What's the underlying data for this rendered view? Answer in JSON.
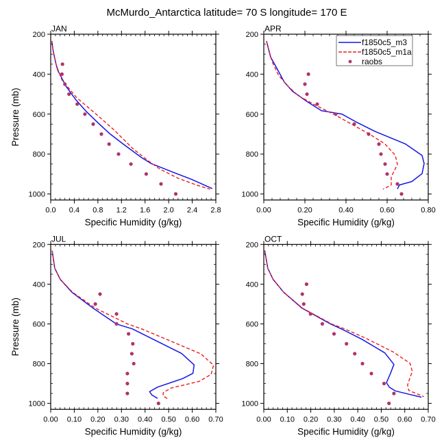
{
  "chart_data": {
    "title": "McMurdo_Antarctica  latitude= 70 S longitude= 170 E",
    "type": "line",
    "legend": {
      "placement": "top-right of APR panel",
      "entries": [
        {
          "name": "f1850c5_m3",
          "style": "solid-line",
          "color": "#1414e6"
        },
        {
          "name": "f1850c5_m1a",
          "style": "dashed-line",
          "color": "#ee1c1c"
        },
        {
          "name": "raobs",
          "style": "dot",
          "color": "#b03468"
        }
      ]
    },
    "panels": [
      {
        "label": "JAN",
        "xlabel": "Specific Humidity (g/kg)",
        "ylabel": "Pressure (mb)",
        "xlim": [
          0,
          2.8
        ],
        "ylim": [
          200,
          1030
        ],
        "y_reversed": true,
        "xticks": [
          0.0,
          0.4,
          0.8,
          1.2,
          1.6,
          2.0,
          2.4,
          2.8
        ],
        "xtick_labels": [
          "0.0",
          "0.4",
          "0.8",
          "1.2",
          "1.6",
          "2.0",
          "2.4",
          "2.8"
        ],
        "x_minor_step": 0.08,
        "yticks": [
          200,
          400,
          600,
          800,
          1000
        ],
        "ytick_labels": [
          "200",
          "400",
          "600",
          "800",
          "1000"
        ],
        "show_ylabel": true,
        "series": [
          {
            "name": "f1850c5_m3",
            "x": [
              0.02,
              0.04,
              0.09,
              0.12,
              0.26,
              0.42,
              0.61,
              0.81,
              1.0,
              1.23,
              1.54,
              1.7,
              2.04,
              2.39,
              2.74
            ],
            "y": [
              234,
              280,
              349,
              381,
              461,
              526,
              589,
              646,
              698,
              750,
              818,
              847,
              887,
              927,
              973
            ]
          },
          {
            "name": "f1850c5_m1a",
            "x": [
              0.02,
              0.05,
              0.1,
              0.19,
              0.44,
              0.77,
              1.08,
              1.39,
              1.66,
              1.85,
              2.16,
              2.47,
              2.7
            ],
            "y": [
              234,
              300,
              360,
              429,
              518,
              600,
              681,
              772,
              835,
              875,
              921,
              955,
              976
            ]
          },
          {
            "name": "raobs",
            "x": [
              0.2,
              0.19,
              0.24,
              0.31,
              0.45,
              0.58,
              0.72,
              0.86,
              0.99,
              1.15,
              1.36,
              1.62,
              1.87,
              2.12
            ],
            "y": [
              350,
              400,
              450,
              500,
              550,
              600,
              650,
              700,
              750,
              800,
              850,
              900,
              950,
              1000
            ]
          }
        ]
      },
      {
        "label": "APR",
        "xlabel": "Specific Humidity (g/kg)",
        "ylabel": "",
        "xlim": [
          0,
          0.8
        ],
        "ylim": [
          200,
          1030
        ],
        "y_reversed": true,
        "xticks": [
          0.0,
          0.2,
          0.4,
          0.6,
          0.8
        ],
        "xtick_labels": [
          "0.00",
          "0.20",
          "0.40",
          "0.60",
          "0.80"
        ],
        "x_minor_step": 0.04,
        "yticks": [
          200,
          400,
          600,
          800,
          1000
        ],
        "ytick_labels": [
          "200",
          "400",
          "600",
          "800",
          "1000"
        ],
        "show_ylabel": false,
        "series": [
          {
            "name": "f1850c5_m3",
            "x": [
              0.013,
              0.033,
              0.067,
              0.1,
              0.14,
              0.21,
              0.28,
              0.38,
              0.45,
              0.54,
              0.69,
              0.77,
              0.78,
              0.77,
              0.72,
              0.66,
              0.65
            ],
            "y": [
              234,
              314,
              377,
              440,
              486,
              537,
              583,
              600,
              640,
              686,
              750,
              807,
              847,
              898,
              938,
              955,
              975
            ]
          },
          {
            "name": "f1850c5_m1a",
            "x": [
              0.013,
              0.04,
              0.072,
              0.12,
              0.17,
              0.25,
              0.35,
              0.44,
              0.52,
              0.59,
              0.64,
              0.65,
              0.62,
              0.62,
              0.58
            ],
            "y": [
              234,
              337,
              406,
              463,
              509,
              555,
              606,
              658,
              704,
              750,
              807,
              852,
              915,
              955,
              976
            ]
          },
          {
            "name": "raobs",
            "x": [
              0.217,
              0.2,
              0.21,
              0.26,
              0.35,
              0.44,
              0.51,
              0.56,
              0.57,
              0.59,
              0.6,
              0.65,
              0.67
            ],
            "y": [
              400,
              450,
              500,
              550,
              600,
              650,
              700,
              750,
              800,
              850,
              900,
              950,
              1000
            ]
          }
        ]
      },
      {
        "label": "JUL",
        "xlabel": "Specific Humidity (g/kg)",
        "ylabel": "Pressure (mb)",
        "xlim": [
          0,
          0.7
        ],
        "ylim": [
          200,
          1030
        ],
        "y_reversed": true,
        "xticks": [
          0.0,
          0.1,
          0.2,
          0.3,
          0.4,
          0.5,
          0.6,
          0.7
        ],
        "xtick_labels": [
          "0.00",
          "0.10",
          "0.20",
          "0.30",
          "0.40",
          "0.50",
          "0.60",
          "0.70"
        ],
        "x_minor_step": 0.02,
        "yticks": [
          200,
          400,
          600,
          800,
          1000
        ],
        "ytick_labels": [
          "200",
          "400",
          "600",
          "800",
          "1000"
        ],
        "show_ylabel": true,
        "series": [
          {
            "name": "f1850c5_m3",
            "x": [
              0.006,
              0.017,
              0.04,
              0.09,
              0.18,
              0.279,
              0.346,
              0.462,
              0.555,
              0.608,
              0.603,
              0.56,
              0.453,
              0.419,
              0.429,
              0.453
            ],
            "y": [
              231,
              320,
              375,
              441,
              521,
              601,
              625,
              694,
              749,
              806,
              849,
              875,
              918,
              941,
              958,
              975
            ]
          },
          {
            "name": "f1850c5_m1a",
            "x": [
              0.006,
              0.017,
              0.04,
              0.093,
              0.19,
              0.327,
              0.385,
              0.5,
              0.637,
              0.69,
              0.68,
              0.63,
              0.51,
              0.477,
              0.477,
              0.497
            ],
            "y": [
              231,
              320,
              375,
              441,
              521,
              601,
              625,
              682,
              751,
              808,
              854,
              889,
              923,
              946,
              963,
              978
            ]
          },
          {
            "name": "raobs",
            "x": [
              0.209,
              0.189,
              0.279,
              0.279,
              0.33,
              0.348,
              0.344,
              0.352,
              0.325,
              0.325,
              0.325,
              0.457
            ],
            "y": [
              450,
              500,
              550,
              600,
              650,
              700,
              750,
              800,
              850,
              900,
              950,
              1000
            ]
          }
        ]
      },
      {
        "label": "OCT",
        "xlabel": "Specific Humidity (g/kg)",
        "ylabel": "",
        "xlim": [
          0,
          0.7
        ],
        "ylim": [
          200,
          1030
        ],
        "y_reversed": true,
        "xticks": [
          0.0,
          0.1,
          0.2,
          0.3,
          0.4,
          0.5,
          0.6,
          0.7
        ],
        "xtick_labels": [
          "0.00",
          "0.10",
          "0.20",
          "0.30",
          "0.40",
          "0.50",
          "0.60",
          "0.70"
        ],
        "x_minor_step": 0.02,
        "yticks": [
          200,
          400,
          600,
          800,
          1000
        ],
        "ytick_labels": [
          "200",
          "400",
          "600",
          "800",
          "1000"
        ],
        "show_ylabel": false,
        "series": [
          {
            "name": "f1850c5_m3",
            "x": [
              0.004,
              0.017,
              0.039,
              0.085,
              0.163,
              0.285,
              0.33,
              0.417,
              0.515,
              0.554,
              0.539,
              0.522,
              0.535,
              0.559,
              0.617,
              0.671
            ],
            "y": [
              231,
              320,
              375,
              441,
              521,
              601,
              625,
              677,
              746,
              804,
              850,
              896,
              919,
              937,
              954,
              969
            ]
          },
          {
            "name": "f1850c5_m1a",
            "x": [
              0.004,
              0.017,
              0.039,
              0.085,
              0.165,
              0.29,
              0.344,
              0.432,
              0.549,
              0.622,
              0.632,
              0.612,
              0.617,
              0.681
            ],
            "y": [
              231,
              320,
              375,
              441,
              521,
              601,
              625,
              671,
              740,
              798,
              838,
              907,
              935,
              966
            ]
          },
          {
            "name": "raobs",
            "x": [
              0.182,
              0.164,
              0.17,
              0.199,
              0.249,
              0.299,
              0.352,
              0.387,
              0.42,
              0.458,
              0.512,
              0.554,
              0.533
            ],
            "y": [
              400,
              450,
              500,
              550,
              600,
              650,
              700,
              750,
              800,
              850,
              900,
              950,
              1000
            ]
          }
        ]
      }
    ]
  }
}
